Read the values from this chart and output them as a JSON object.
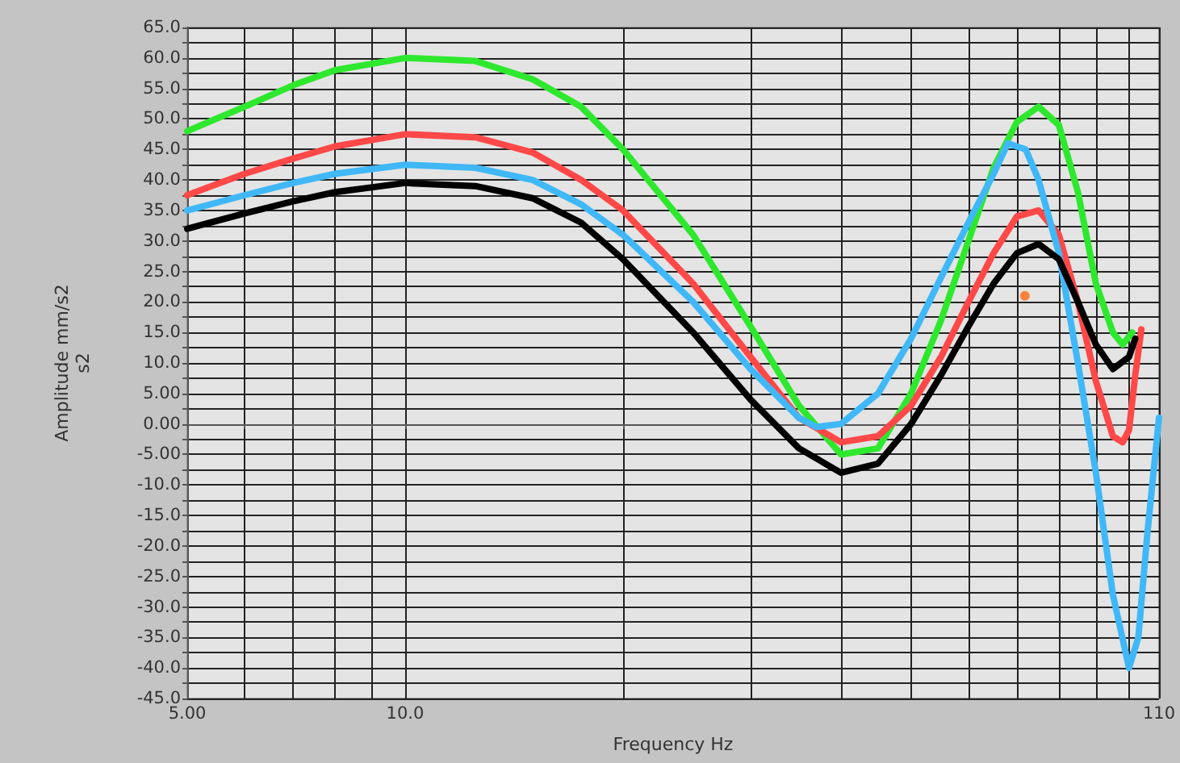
{
  "chart_data": {
    "type": "line",
    "xlabel": "Frequency Hz",
    "ylabel": "Amplitude mm/s2\ns2",
    "log": "x",
    "grid": true,
    "marker": "none",
    "line_style": "solid",
    "xlim": [
      5,
      110
    ],
    "xticks": [
      {
        "value": 5,
        "label": "5.00"
      },
      {
        "value": 6,
        "label": null
      },
      {
        "value": 7,
        "label": null
      },
      {
        "value": 8,
        "label": null
      },
      {
        "value": 9,
        "label": null
      },
      {
        "value": 10,
        "label": "10.0"
      },
      {
        "value": 20,
        "label": null
      },
      {
        "value": 30,
        "label": null
      },
      {
        "value": 40,
        "label": null
      },
      {
        "value": 50,
        "label": null
      },
      {
        "value": 60,
        "label": null
      },
      {
        "value": 70,
        "label": null
      },
      {
        "value": 80,
        "label": null
      },
      {
        "value": 90,
        "label": null
      },
      {
        "value": 100,
        "label": null
      },
      {
        "value": 110,
        "label": "110"
      }
    ],
    "ylim": [
      -45,
      65
    ],
    "yticks": [
      {
        "value": -45,
        "label": "-45.0"
      },
      {
        "value": -42.5,
        "label": null
      },
      {
        "value": -40,
        "label": "-40.0"
      },
      {
        "value": -37.5,
        "label": null
      },
      {
        "value": -35,
        "label": "-35.0"
      },
      {
        "value": -32.5,
        "label": null
      },
      {
        "value": -30,
        "label": "-30.0"
      },
      {
        "value": -27.5,
        "label": null
      },
      {
        "value": -25,
        "label": "-25.0"
      },
      {
        "value": -22.5,
        "label": null
      },
      {
        "value": -20,
        "label": "-20.0"
      },
      {
        "value": -17.5,
        "label": null
      },
      {
        "value": -15,
        "label": "-15.0"
      },
      {
        "value": -12.5,
        "label": null
      },
      {
        "value": -10,
        "label": "-10.0"
      },
      {
        "value": -7.5,
        "label": null
      },
      {
        "value": -5,
        "label": "-5.00"
      },
      {
        "value": -2.5,
        "label": null
      },
      {
        "value": 0,
        "label": "0.00"
      },
      {
        "value": 2.5,
        "label": null
      },
      {
        "value": 5,
        "label": "5.00"
      },
      {
        "value": 7.5,
        "label": null
      },
      {
        "value": 10,
        "label": "10.0"
      },
      {
        "value": 12.5,
        "label": null
      },
      {
        "value": 15,
        "label": "15.0"
      },
      {
        "value": 17.5,
        "label": null
      },
      {
        "value": 20,
        "label": "20.0"
      },
      {
        "value": 22.5,
        "label": null
      },
      {
        "value": 25,
        "label": "25.0"
      },
      {
        "value": 27.5,
        "label": null
      },
      {
        "value": 30,
        "label": "30.0"
      },
      {
        "value": 32.5,
        "label": null
      },
      {
        "value": 35,
        "label": "35.0"
      },
      {
        "value": 37.5,
        "label": null
      },
      {
        "value": 40,
        "label": "40.0"
      },
      {
        "value": 42.5,
        "label": null
      },
      {
        "value": 45,
        "label": "45.0"
      },
      {
        "value": 47.5,
        "label": null
      },
      {
        "value": 50,
        "label": "50.0"
      },
      {
        "value": 52.5,
        "label": null
      },
      {
        "value": 55,
        "label": "55.0"
      },
      {
        "value": 57.5,
        "label": null
      },
      {
        "value": 60,
        "label": "60.0"
      },
      {
        "value": 62.5,
        "label": null
      },
      {
        "value": 65,
        "label": "65.0"
      }
    ],
    "series": [
      {
        "color": "#2ee82e",
        "x": [
          5,
          6,
          7,
          8,
          10,
          12.5,
          15,
          17.5,
          20,
          25,
          30,
          35,
          40,
          45,
          50,
          55,
          60,
          65,
          70,
          75,
          80,
          85,
          90,
          95,
          98,
          101
        ],
        "values": [
          48,
          52,
          55.5,
          58,
          60,
          59.5,
          56.5,
          52,
          45,
          31,
          16,
          3,
          -5,
          -4,
          5,
          17,
          30,
          42,
          49.5,
          52,
          49,
          38,
          23,
          15,
          13,
          15
        ]
      },
      {
        "color": "#ff4848",
        "x": [
          5,
          6,
          7,
          8,
          10,
          12.5,
          15,
          17.5,
          20,
          25,
          30,
          35,
          40,
          45,
          50,
          55,
          60,
          65,
          70,
          75,
          80,
          85,
          90,
          95,
          98,
          100,
          102,
          104
        ],
        "values": [
          37.5,
          41,
          43.5,
          45.5,
          47.5,
          47,
          44.5,
          40,
          35,
          23,
          11,
          1,
          -3,
          -2,
          3,
          11,
          20,
          28,
          34,
          35,
          31,
          20,
          7,
          -2,
          -3,
          -1,
          8,
          15.5
        ]
      },
      {
        "color": "#40b8f8",
        "x": [
          5,
          6,
          7,
          8,
          10,
          12.5,
          15,
          17.5,
          20,
          25,
          30,
          35,
          37,
          40,
          45,
          50,
          55,
          60,
          65,
          68,
          72,
          75,
          80,
          85,
          90,
          95,
          100,
          103,
          106,
          110
        ],
        "values": [
          35,
          37.5,
          39.5,
          41,
          42.5,
          42,
          40,
          36,
          31,
          20,
          9,
          1,
          -0.5,
          0,
          5,
          14,
          24,
          33,
          41,
          46,
          45,
          40,
          28,
          10,
          -8,
          -28,
          -40,
          -35,
          -18,
          1
        ]
      },
      {
        "color": "#000000",
        "x": [
          5,
          6,
          7,
          8,
          10,
          12.5,
          15,
          17.5,
          20,
          25,
          30,
          35,
          40,
          45,
          50,
          55,
          60,
          65,
          70,
          75,
          80,
          85,
          90,
          95,
          100,
          102
        ],
        "values": [
          32,
          34.5,
          36.5,
          38,
          39.5,
          39,
          37,
          33,
          27,
          15,
          4,
          -4,
          -8,
          -6.5,
          0,
          8,
          16,
          23,
          28,
          29.5,
          27,
          20,
          13,
          9,
          11,
          14
        ]
      },
      {
        "type": "scatter",
        "marker": "circle",
        "color": "#ff6a13",
        "x": [
          71.8
        ],
        "values": [
          21
        ]
      }
    ]
  }
}
